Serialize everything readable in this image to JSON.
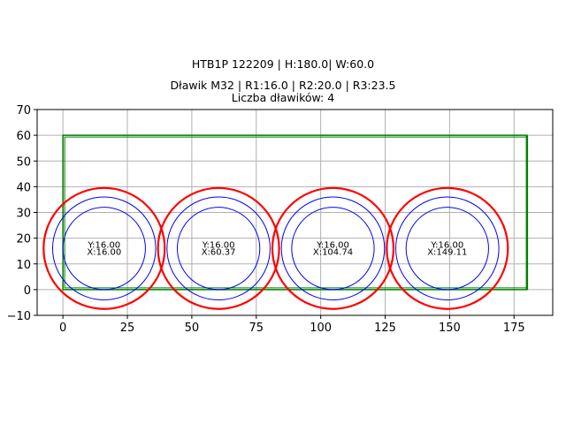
{
  "title": {
    "line1": "HTB1P 122209 | H:180.0| W:60.0",
    "line2": "Dławik M32 | R1:16.0 | R2:20.0 | R3:23.5",
    "line3": "Liczba dławików: 4"
  },
  "colors": {
    "rect": "#008000",
    "outer_circle": "#ff0000",
    "inner_circle": "#0000ff",
    "grid": "#b0b0b0"
  },
  "chart_data": {
    "type": "scatter",
    "title": "HTB1P 122209 | H:180.0| W:60.0 / Dławik M32 | R1:16.0 | R2:20.0 | R3:23.5 / Liczba dławików: 4",
    "xlabel": "",
    "ylabel": "",
    "xlim": [
      -10,
      190
    ],
    "ylim": [
      -10,
      70
    ],
    "xticks": [
      0,
      25,
      50,
      75,
      100,
      125,
      150,
      175
    ],
    "yticks": [
      -10,
      0,
      10,
      20,
      30,
      40,
      50,
      60,
      70
    ],
    "grid": true,
    "rectangle": {
      "x": 0,
      "y": 0,
      "width": 180,
      "height": 60
    },
    "radii": {
      "R1": 16.0,
      "R2": 20.0,
      "R3": 23.5
    },
    "glands": [
      {
        "x": 16.0,
        "y": 16.0,
        "label_x": "X:16.00",
        "label_y": "Y:16.00"
      },
      {
        "x": 60.37,
        "y": 16.0,
        "label_x": "X:60.37",
        "label_y": "Y:16.00"
      },
      {
        "x": 104.74,
        "y": 16.0,
        "label_x": "X:104.74",
        "label_y": "Y:16.00"
      },
      {
        "x": 149.11,
        "y": 16.0,
        "label_x": "X:149.11",
        "label_y": "Y:16.00"
      }
    ]
  }
}
